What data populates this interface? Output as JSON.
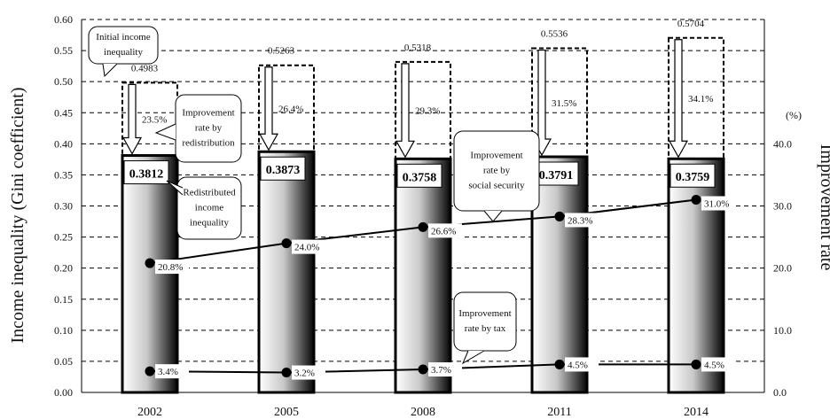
{
  "chart_data": {
    "type": "bar",
    "categories": [
      "2002",
      "2005",
      "2008",
      "2011",
      "2014"
    ],
    "ylabel": "Income inequality (Gini coefficient)",
    "y2label": "Improvement rate",
    "y2unit": "(%)",
    "ylim": [
      0,
      0.6
    ],
    "y_ticks": [
      "0.00",
      "0.05",
      "0.10",
      "0.15",
      "0.20",
      "0.25",
      "0.30",
      "0.35",
      "0.40",
      "0.45",
      "0.50",
      "0.55",
      "0.60"
    ],
    "y2lim": [
      0,
      60
    ],
    "y2_ticks": [
      "0.0",
      "10.0",
      "20.0",
      "30.0",
      "40.0"
    ],
    "grid": "dashed horizontal",
    "series": [
      {
        "name": "Initial income inequality",
        "values": [
          0.4983,
          0.5263,
          0.5318,
          0.5536,
          0.5704
        ],
        "labels": [
          "0.4983",
          "0.5263",
          "0.5318",
          "0.5536",
          "0.5704"
        ]
      },
      {
        "name": "Redistributed income inequality",
        "values": [
          0.3812,
          0.3873,
          0.3758,
          0.3791,
          0.3759
        ],
        "labels": [
          "0.3812",
          "0.3873",
          "0.3758",
          "0.3791",
          "0.3759"
        ]
      },
      {
        "name": "Improvement rate by redistribution",
        "values": [
          23.5,
          26.4,
          29.3,
          31.5,
          34.1
        ],
        "labels": [
          "23.5%",
          "26.4%",
          "29.3%",
          "31.5%",
          "34.1%"
        ]
      },
      {
        "name": "Improvement rate by social security",
        "axis": "right",
        "values": [
          20.8,
          24.0,
          26.6,
          28.3,
          31.0
        ],
        "labels": [
          "20.8%",
          "24.0%",
          "26.6%",
          "28.3%",
          "31.0%"
        ]
      },
      {
        "name": "Improvement rate by tax",
        "axis": "right",
        "values": [
          3.4,
          3.2,
          3.7,
          4.5,
          4.5
        ],
        "labels": [
          "3.4%",
          "3.2%",
          "3.7%",
          "4.5%",
          "4.5%"
        ]
      }
    ],
    "callouts": {
      "initial": [
        "Initial income",
        "inequality"
      ],
      "redistribution": [
        "Improvement",
        "rate by",
        "redistribution"
      ],
      "redistributed": [
        "Redistributed",
        "income",
        "inequality"
      ],
      "social_security": [
        "Improvement",
        "rate by",
        "social security"
      ],
      "tax": [
        "Improvement",
        "rate by tax"
      ]
    }
  }
}
